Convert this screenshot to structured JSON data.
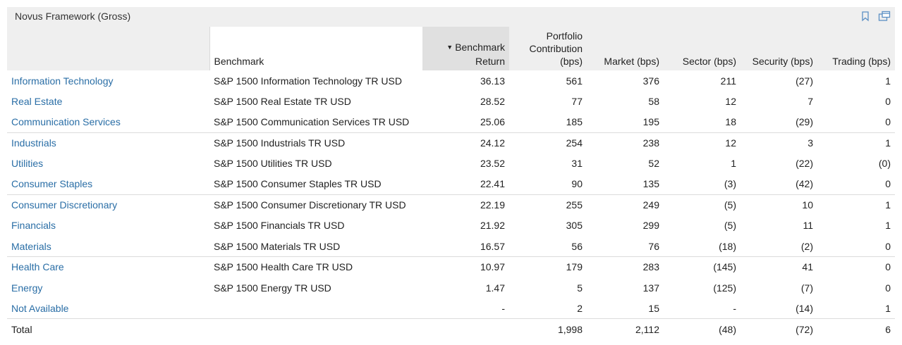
{
  "panel": {
    "title": "Novus Framework (Gross)"
  },
  "icons": {
    "bookmark": "bookmark-icon",
    "popout": "popout-icon"
  },
  "colors": {
    "link": "#2a6ea6",
    "header_bg": "#efefef",
    "sorted_bg": "#e0e0e0"
  },
  "columns": {
    "benchmark": "Benchmark",
    "benchmark_return_1": "Benchmark",
    "benchmark_return_2": "Return",
    "sort_indicator": "▼",
    "contribution_1": "Portfolio",
    "contribution_2": "Contribution",
    "contribution_3": "(bps)",
    "market": "Market (bps)",
    "sector": "Sector (bps)",
    "security": "Security (bps)",
    "trading": "Trading (bps)"
  },
  "rows": [
    {
      "sector": "Information Technology",
      "benchmark": "S&P 1500 Information Technology TR USD",
      "ret": "36.13",
      "contrib": "561",
      "market": "376",
      "sector_bps": "211",
      "security": "(27)",
      "trading": "1"
    },
    {
      "sector": "Real Estate",
      "benchmark": "S&P 1500 Real Estate TR USD",
      "ret": "28.52",
      "contrib": "77",
      "market": "58",
      "sector_bps": "12",
      "security": "7",
      "trading": "0"
    },
    {
      "sector": "Communication Services",
      "benchmark": "S&P 1500 Communication Services TR USD",
      "ret": "25.06",
      "contrib": "185",
      "market": "195",
      "sector_bps": "18",
      "security": "(29)",
      "trading": "0"
    },
    {
      "sector": "Industrials",
      "benchmark": "S&P 1500 Industrials TR USD",
      "ret": "24.12",
      "contrib": "254",
      "market": "238",
      "sector_bps": "12",
      "security": "3",
      "trading": "1"
    },
    {
      "sector": "Utilities",
      "benchmark": "S&P 1500 Utilities TR USD",
      "ret": "23.52",
      "contrib": "31",
      "market": "52",
      "sector_bps": "1",
      "security": "(22)",
      "trading": "(0)"
    },
    {
      "sector": "Consumer Staples",
      "benchmark": "S&P 1500 Consumer Staples TR USD",
      "ret": "22.41",
      "contrib": "90",
      "market": "135",
      "sector_bps": "(3)",
      "security": "(42)",
      "trading": "0"
    },
    {
      "sector": "Consumer Discretionary",
      "benchmark": "S&P 1500 Consumer Discretionary TR USD",
      "ret": "22.19",
      "contrib": "255",
      "market": "249",
      "sector_bps": "(5)",
      "security": "10",
      "trading": "1"
    },
    {
      "sector": "Financials",
      "benchmark": "S&P 1500 Financials TR USD",
      "ret": "21.92",
      "contrib": "305",
      "market": "299",
      "sector_bps": "(5)",
      "security": "11",
      "trading": "1"
    },
    {
      "sector": "Materials",
      "benchmark": "S&P 1500 Materials TR USD",
      "ret": "16.57",
      "contrib": "56",
      "market": "76",
      "sector_bps": "(18)",
      "security": "(2)",
      "trading": "0"
    },
    {
      "sector": "Health Care",
      "benchmark": "S&P 1500 Health Care TR USD",
      "ret": "10.97",
      "contrib": "179",
      "market": "283",
      "sector_bps": "(145)",
      "security": "41",
      "trading": "0"
    },
    {
      "sector": "Energy",
      "benchmark": "S&P 1500 Energy TR USD",
      "ret": "1.47",
      "contrib": "5",
      "market": "137",
      "sector_bps": "(125)",
      "security": "(7)",
      "trading": "0"
    },
    {
      "sector": "Not Available",
      "benchmark": "",
      "ret": "-",
      "contrib": "2",
      "market": "15",
      "sector_bps": "-",
      "security": "(14)",
      "trading": "1"
    }
  ],
  "total": {
    "label": "Total",
    "contrib": "1,998",
    "market": "2,112",
    "sector_bps": "(48)",
    "security": "(72)",
    "trading": "6"
  }
}
